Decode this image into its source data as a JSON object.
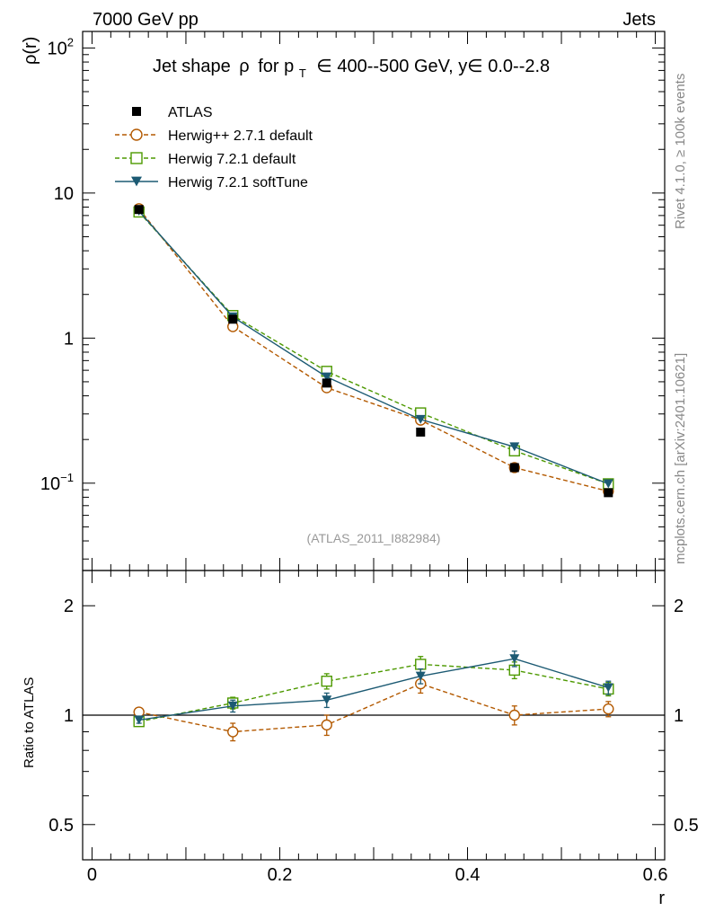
{
  "header": {
    "left_label": "7000 GeV pp",
    "right_label": "Jets"
  },
  "side_text": {
    "rivet": "Rivet 4.1.0, ≥ 100k events",
    "mcplots": "mcplots.cern.ch [arXiv:2401.10621]"
  },
  "chart_data": [
    {
      "type": "line",
      "panel": "main",
      "title": "Jet shape ρ for pₜ ∈ 400--500 GeV, y∈ 0.0--2.8",
      "title_parts": {
        "prefix": "Jet shape",
        "rho": "ρ",
        "for": "for p",
        "sub": "T",
        "rest": "∈ 400--500 GeV, y∈ 0.0--2.8"
      },
      "ylabel": "ρ(r)",
      "yscale": "log",
      "ylim": [
        0.025,
        130
      ],
      "xlim": [
        -0.01,
        0.61
      ],
      "yticks": [
        {
          "value": 100,
          "base": "10",
          "exp": "2"
        },
        {
          "value": 10,
          "base": "10",
          "exp": ""
        },
        {
          "value": 1,
          "base": "1",
          "exp": ""
        },
        {
          "value": 0.1,
          "base": "10",
          "exp": "−1"
        }
      ],
      "annotation": "(ATLAS_2011_I882984)",
      "legend_position": "top-left",
      "series": [
        {
          "name": "ATLAS",
          "style": "data",
          "color": "#000000",
          "marker": "filled-square",
          "x": [
            0.05,
            0.15,
            0.25,
            0.35,
            0.45,
            0.55
          ],
          "y": [
            7.7,
            1.35,
            0.49,
            0.225,
            0.128,
            0.086
          ]
        },
        {
          "name": "Herwig++ 2.7.1 default",
          "style": "dashed",
          "color": "#b35900",
          "marker": "open-circle",
          "x": [
            0.05,
            0.15,
            0.25,
            0.35,
            0.45,
            0.55
          ],
          "y": [
            7.8,
            1.2,
            0.455,
            0.272,
            0.128,
            0.088
          ]
        },
        {
          "name": "Herwig 7.2.1 default",
          "style": "dashed",
          "color": "#4d9900",
          "marker": "open-square",
          "x": [
            0.05,
            0.15,
            0.25,
            0.35,
            0.45,
            0.55
          ],
          "y": [
            7.4,
            1.43,
            0.59,
            0.305,
            0.167,
            0.099
          ]
        },
        {
          "name": "Herwig 7.2.1 softTune",
          "style": "solid",
          "color": "#1c5a73",
          "marker": "filled-triangle-down",
          "x": [
            0.05,
            0.15,
            0.25,
            0.35,
            0.45,
            0.55
          ],
          "y": [
            7.5,
            1.4,
            0.54,
            0.275,
            0.178,
            0.099
          ]
        }
      ]
    },
    {
      "type": "line",
      "panel": "ratio",
      "ylabel": "Ratio to ATLAS",
      "xlabel": "r",
      "yscale": "log",
      "ylim": [
        0.4,
        2.5
      ],
      "xlim": [
        -0.01,
        0.61
      ],
      "yticks": [
        {
          "value": 2,
          "label": "2"
        },
        {
          "value": 1,
          "label": "1"
        },
        {
          "value": 0.5,
          "label": "0.5"
        }
      ],
      "xticks": [
        {
          "value": 0,
          "label": "0"
        },
        {
          "value": 0.2,
          "label": "0.2"
        },
        {
          "value": 0.4,
          "label": "0.4"
        },
        {
          "value": 0.6,
          "label": "0.6"
        }
      ],
      "reference_line": 1,
      "series": [
        {
          "name": "Herwig++ 2.7.1 default",
          "style": "dashed",
          "color": "#b35900",
          "marker": "open-circle",
          "x": [
            0.05,
            0.15,
            0.25,
            0.35,
            0.45,
            0.55
          ],
          "y": [
            1.02,
            0.9,
            0.94,
            1.22,
            1.0,
            1.04
          ],
          "err": [
            0.02,
            0.05,
            0.06,
            0.07,
            0.06,
            0.05
          ]
        },
        {
          "name": "Herwig 7.2.1 default",
          "style": "dashed",
          "color": "#4d9900",
          "marker": "open-square",
          "x": [
            0.05,
            0.15,
            0.25,
            0.35,
            0.45,
            0.55
          ],
          "y": [
            0.96,
            1.08,
            1.24,
            1.38,
            1.33,
            1.18
          ],
          "err": [
            0.02,
            0.04,
            0.06,
            0.07,
            0.07,
            0.05
          ]
        },
        {
          "name": "Herwig 7.2.1 softTune",
          "style": "solid",
          "color": "#1c5a73",
          "marker": "filled-triangle-down",
          "x": [
            0.05,
            0.15,
            0.25,
            0.35,
            0.45,
            0.55
          ],
          "y": [
            0.97,
            1.06,
            1.1,
            1.28,
            1.43,
            1.19
          ],
          "err": [
            0.02,
            0.04,
            0.05,
            0.06,
            0.07,
            0.05
          ]
        }
      ]
    }
  ]
}
